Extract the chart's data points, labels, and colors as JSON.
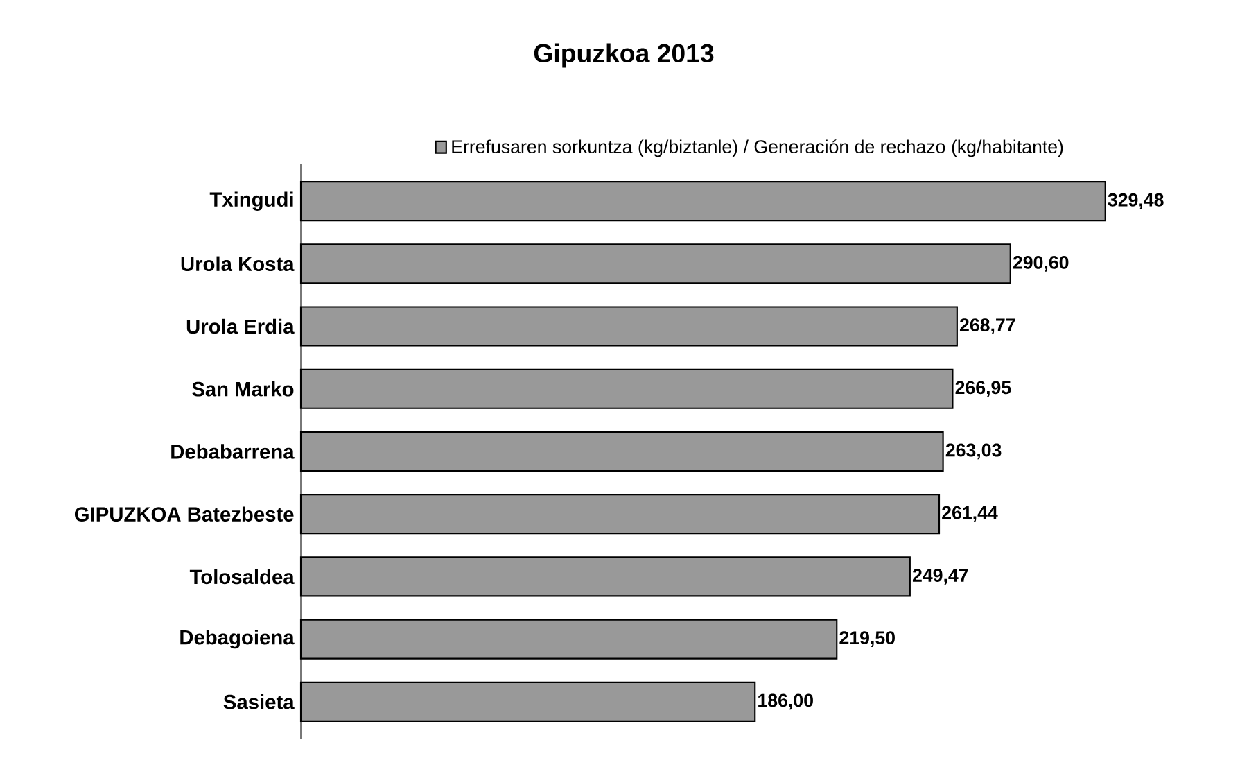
{
  "chart_data": {
    "type": "bar",
    "orientation": "horizontal",
    "title": "Gipuzkoa 2013",
    "categories": [
      "Txingudi",
      "Urola Kosta",
      "Urola Erdia",
      "San Marko",
      "Debabarrena",
      "GIPUZKOA Batezbeste",
      "Tolosaldea",
      "Debagoiena",
      "Sasieta"
    ],
    "series": [
      {
        "name": "Errefusaren sorkuntza (kg/biztanle) / Generación de rechazo (kg/habitante)",
        "color": "#999999",
        "values": [
          329.48,
          290.6,
          268.77,
          266.95,
          263.03,
          261.44,
          249.47,
          219.5,
          186.0
        ],
        "value_labels": [
          "329,48",
          "290,60",
          "268,77",
          "266,95",
          "263,03",
          "261,44",
          "249,47",
          "219,50",
          "186,00"
        ]
      }
    ],
    "legend": "top"
  }
}
